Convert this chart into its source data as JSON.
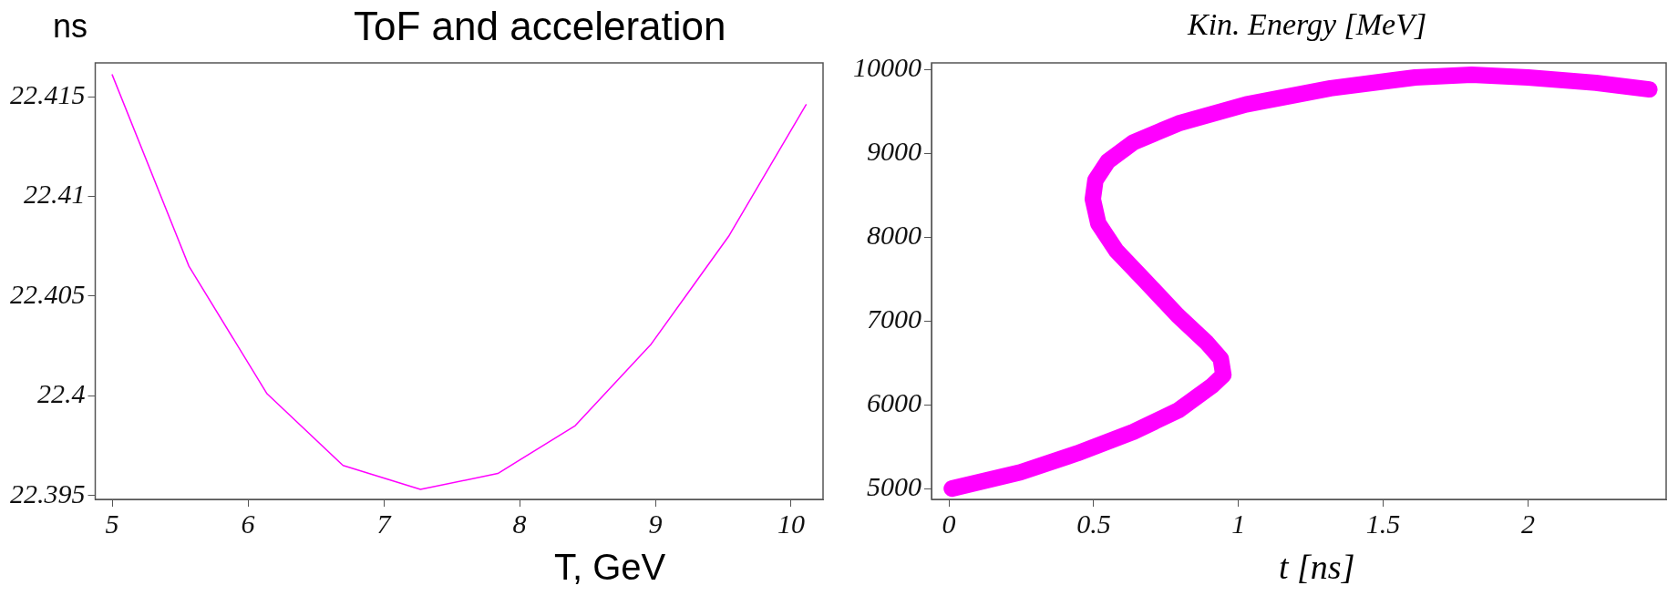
{
  "chart_data": [
    {
      "type": "line",
      "title": "ToF and acceleration",
      "ylabel": "ns",
      "xlabel": "T, GeV",
      "x": [
        5,
        5.565,
        6.14,
        6.7,
        7.27,
        7.84,
        8.41,
        8.97,
        9.54,
        10.11
      ],
      "series": [
        {
          "color": "#ff00ff",
          "values": [
            22.4161,
            22.4065,
            22.4001,
            22.3965,
            22.3953,
            22.3961,
            22.3985,
            22.4026,
            22.408,
            22.4146
          ]
        }
      ],
      "xlim": [
        4.875,
        10.235
      ],
      "ylim": [
        22.3948,
        22.4167
      ],
      "xticks": [
        5,
        6,
        7,
        8,
        9,
        10
      ],
      "yticks": [
        22.395,
        22.4,
        22.405,
        22.41,
        22.415
      ],
      "grid": false
    },
    {
      "type": "line",
      "ylabel": "Kin. Energy [MeV]",
      "xlabel": "t [ns]",
      "series": [
        {
          "color": "#ff00ff",
          "x": [
            0.01,
            0.247,
            0.442,
            0.637,
            0.793,
            0.909,
            0.948,
            0.939,
            0.89,
            0.79,
            0.676,
            0.578,
            0.516,
            0.497,
            0.506,
            0.549,
            0.637,
            0.793,
            1.026,
            1.318,
            1.61,
            1.805,
            2.0,
            2.234,
            2.419
          ],
          "values": [
            5000,
            5194,
            5419,
            5677,
            5935,
            6226,
            6355,
            6548,
            6742,
            7065,
            7484,
            7839,
            8161,
            8452,
            8677,
            8903,
            9129,
            9355,
            9581,
            9774,
            9903,
            9935,
            9903,
            9839,
            9761
          ]
        }
      ],
      "xlim": [
        -0.06,
        2.477
      ],
      "ylim": [
        4871,
        10077
      ],
      "xticks": [
        0,
        0.5,
        1,
        1.5,
        2
      ],
      "yticks": [
        5000,
        6000,
        7000,
        8000,
        9000,
        10000
      ],
      "grid": false
    }
  ]
}
